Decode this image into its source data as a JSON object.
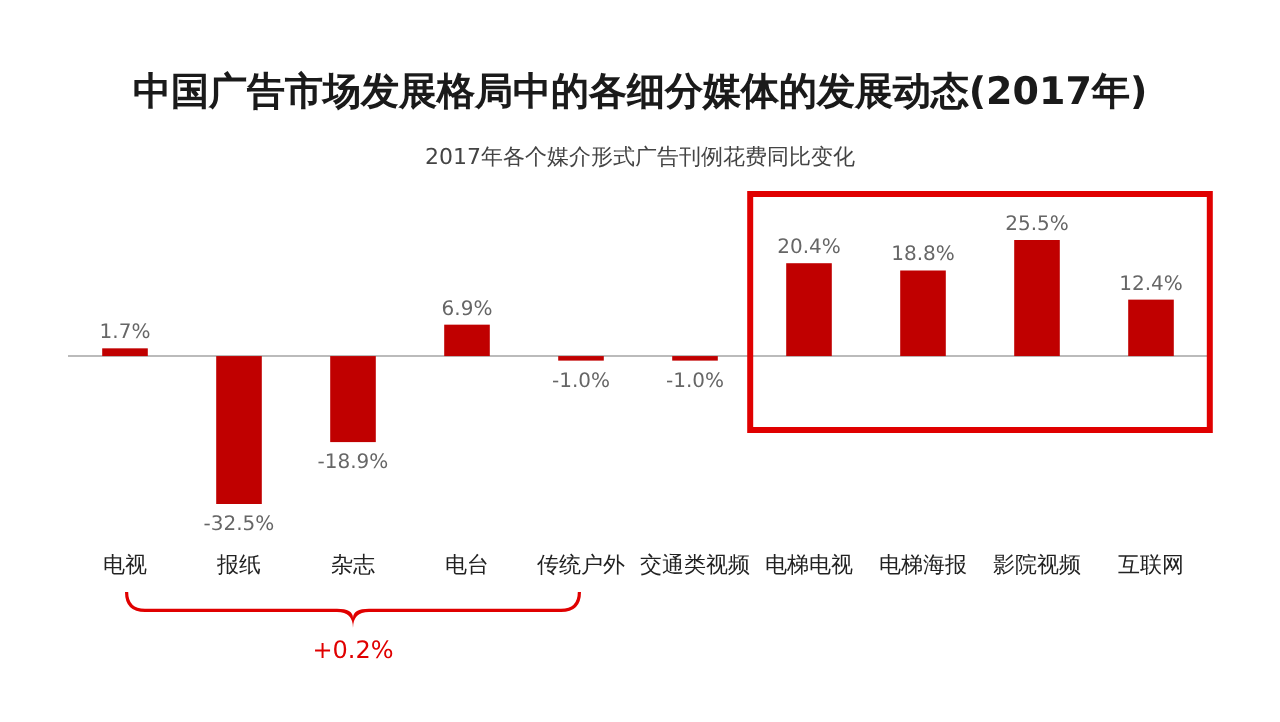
{
  "chart_data": {
    "type": "bar",
    "title": "中国广告市场发展格局中的各细分媒体的发展动态(2017年)",
    "subtitle": "2017年各个媒介形式广告刊例花费同比变化",
    "categories": [
      "电视",
      "报纸",
      "杂志",
      "电台",
      "传统户外",
      "交通类视频",
      "电梯电视",
      "电梯海报",
      "影院视频",
      "互联网"
    ],
    "values": [
      1.7,
      -32.5,
      -18.9,
      6.9,
      -1.0,
      -1.0,
      20.4,
      18.8,
      25.5,
      12.4
    ],
    "value_labels": [
      "1.7%",
      "-32.5%",
      "-18.9%",
      "6.9%",
      "-1.0%",
      "-1.0%",
      "20.4%",
      "18.8%",
      "25.5%",
      "12.4%"
    ],
    "color": "#c00000",
    "annotations": [
      "+0.2%"
    ]
  }
}
